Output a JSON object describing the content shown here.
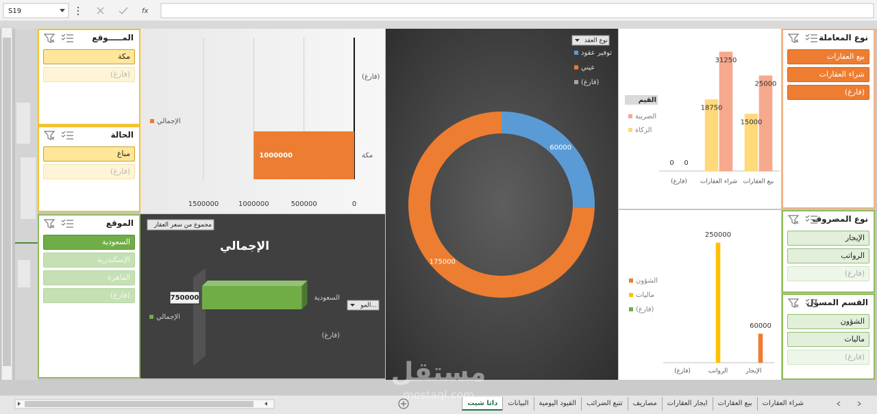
{
  "formula_bar": {
    "name_box": "S19",
    "function_icon": "fx"
  },
  "slicers": [
    {
      "title": "المـــــوقع",
      "theme": "yellow",
      "items": [
        {
          "label": "مكة",
          "state": "selected"
        },
        {
          "label": "(فارغ)",
          "state": "empty"
        }
      ]
    },
    {
      "title": "الحالة",
      "theme": "yellow",
      "items": [
        {
          "label": "مباع",
          "state": "selected"
        },
        {
          "label": "(فارغ)",
          "state": "empty"
        }
      ]
    },
    {
      "title": "الموقع",
      "theme": "green",
      "items": [
        {
          "label": "السعودية",
          "state": "selected"
        },
        {
          "label": "الإسكندرية",
          "state": "unselected"
        },
        {
          "label": "القاهرة",
          "state": "unselected"
        },
        {
          "label": "(فارغ)",
          "state": "unselected"
        }
      ]
    },
    {
      "title": "نوع المعاملة",
      "theme": "orange",
      "items": [
        {
          "label": "بيع العقارات",
          "state": "selected"
        },
        {
          "label": "شراء العقارات",
          "state": "selected"
        },
        {
          "label": "(فارغ)",
          "state": "selected"
        }
      ]
    },
    {
      "title": "نوع المصروف",
      "theme": "green",
      "items": [
        {
          "label": "الإيجار",
          "state": "available"
        },
        {
          "label": "الرواتب",
          "state": "available"
        },
        {
          "label": "(فارغ)",
          "state": "empty"
        }
      ]
    },
    {
      "title": "القسم المسؤل",
      "theme": "green",
      "items": [
        {
          "label": "الشؤون",
          "state": "available"
        },
        {
          "label": "ماليات",
          "state": "available"
        },
        {
          "label": "(فارغ)",
          "state": "empty"
        }
      ]
    }
  ],
  "charts": [
    {
      "type": "bar",
      "orientation": "horizontal",
      "x_reversed": true,
      "grid": true,
      "categories": [
        "مكة",
        "(فارغ)"
      ],
      "series": [
        {
          "name": "الإجمالي",
          "color": "#ed7d31",
          "values": [
            1000000,
            null
          ]
        }
      ],
      "xlim": [
        0,
        1500000
      ],
      "xticks": [
        0,
        500000,
        1000000,
        1500000
      ]
    },
    {
      "type": "bar",
      "orientation": "horizontal",
      "style": "3d",
      "title": "الإجمالي",
      "field_button": "مجموع من سعر العقار",
      "filter_button": "المو...",
      "categories": [
        "السعودية",
        "(فارغ)"
      ],
      "series": [
        {
          "name": "الإجمالي",
          "color": "#70ad47",
          "values": [
            750000,
            null
          ]
        }
      ],
      "xlim": [
        0,
        1000000
      ]
    },
    {
      "type": "donut",
      "legend_title": "نوع العقد",
      "categories": [
        "توفير عقود",
        "عيني",
        "(فارغ)"
      ],
      "colors": [
        "#5b9bd5",
        "#ed7d31",
        "#a5a5a5"
      ],
      "values": [
        60000,
        175000,
        null
      ]
    },
    {
      "type": "column",
      "legend_title": "القيم",
      "label_position": "inside_end",
      "categories": [
        "بيع العقارات",
        "شراء العقارات",
        "(فارغ)"
      ],
      "series": [
        {
          "name": "الضريبة",
          "color": "#f6a98c",
          "values": [
            25000,
            31250,
            0
          ]
        },
        {
          "name": "الزكاة",
          "color": "#ffd97a",
          "values": [
            15000,
            18750,
            0
          ]
        }
      ],
      "ylim": [
        0,
        35000
      ]
    },
    {
      "type": "column",
      "label_position": "outside_end",
      "categories": [
        "الإيجار",
        "الرواتب",
        "(فارغ)"
      ],
      "series": [
        {
          "name": "الشؤون",
          "color": "#ed7d31",
          "values": [
            60000,
            null,
            null
          ]
        },
        {
          "name": "ماليات",
          "color": "#ffc000",
          "values": [
            null,
            250000,
            null
          ]
        },
        {
          "name": "(فارغ)",
          "color": "#70ad47",
          "values": [
            null,
            null,
            null
          ]
        }
      ],
      "ylim": [
        0,
        280000
      ]
    }
  ],
  "sheet_tabs": [
    "شراء العقارات",
    "بيع العقارات",
    "ايجار العقارات",
    "مصاريف",
    "تتبع الضرائب",
    "القيود اليومية",
    "البيانات",
    "داتا شيت"
  ],
  "active_tab": 7,
  "watermark": {
    "logo": "مستقل",
    "url": "mostaql.com"
  }
}
